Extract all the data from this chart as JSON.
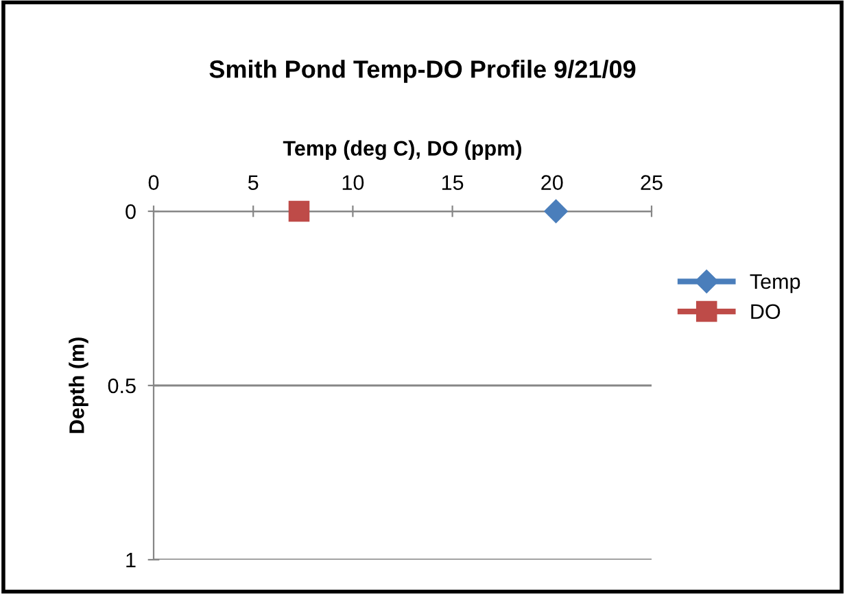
{
  "chart_data": {
    "type": "line",
    "title": "Smith Pond Temp-DO Profile 9/21/09",
    "xlabel": "Temp (deg C), DO (ppm)",
    "ylabel": "Depth (m)",
    "series": [
      {
        "name": "Temp",
        "color": "#4a7ebb",
        "marker": "diamond",
        "x": [
          20.2
        ],
        "values": [
          0
        ]
      },
      {
        "name": "DO",
        "color": "#be4b48",
        "marker": "square",
        "x": [
          7.3
        ],
        "values": [
          0
        ]
      }
    ],
    "xlim": [
      0,
      25
    ],
    "xticks": [
      0,
      5,
      10,
      15,
      20,
      25
    ],
    "ylim": [
      1,
      0
    ],
    "yticks": [
      0,
      0.5,
      1
    ],
    "grid": "y",
    "legend": "right"
  }
}
